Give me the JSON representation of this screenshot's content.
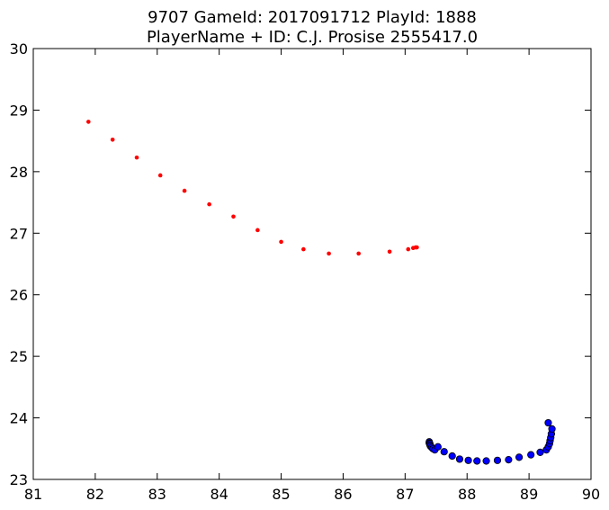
{
  "chart_data": {
    "type": "scatter",
    "title": "9707 GameId: 2017091712 PlayId: 1888",
    "subtitle": "PlayerName + ID: C.J. Prosise 2555417.0",
    "xlabel": "",
    "ylabel": "",
    "xlim": [
      81,
      90
    ],
    "ylim": [
      23,
      30
    ],
    "xticks": [
      "81",
      "82",
      "83",
      "84",
      "85",
      "86",
      "87",
      "88",
      "89",
      "90"
    ],
    "yticks": [
      "23",
      "24",
      "25",
      "26",
      "27",
      "28",
      "29",
      "30"
    ],
    "grid": false,
    "series": [
      {
        "color": "#ff0000",
        "marker": "small-dot",
        "points": [
          [
            81.89,
            28.81
          ],
          [
            82.28,
            28.52
          ],
          [
            82.67,
            28.23
          ],
          [
            83.05,
            27.94
          ],
          [
            83.44,
            27.69
          ],
          [
            83.84,
            27.47
          ],
          [
            84.23,
            27.27
          ],
          [
            84.62,
            27.05
          ],
          [
            85.0,
            26.86
          ],
          [
            85.36,
            26.74
          ],
          [
            85.77,
            26.67
          ],
          [
            86.25,
            26.67
          ],
          [
            86.75,
            26.7
          ],
          [
            87.05,
            26.74
          ],
          [
            87.13,
            26.76
          ],
          [
            87.17,
            26.77
          ],
          [
            87.19,
            26.77
          ]
        ]
      },
      {
        "color": "#0000ff",
        "marker": "circle",
        "points": [
          [
            87.39,
            23.61
          ],
          [
            87.39,
            23.59
          ],
          [
            87.4,
            23.58
          ],
          [
            87.4,
            23.56
          ],
          [
            87.41,
            23.54
          ],
          [
            87.43,
            23.52
          ],
          [
            87.45,
            23.5
          ],
          [
            87.48,
            23.48
          ],
          [
            87.53,
            23.53
          ],
          [
            87.63,
            23.45
          ],
          [
            87.76,
            23.38
          ],
          [
            87.88,
            23.33
          ],
          [
            88.02,
            23.31
          ],
          [
            88.16,
            23.3
          ],
          [
            88.31,
            23.3
          ],
          [
            88.49,
            23.31
          ],
          [
            88.67,
            23.32
          ],
          [
            88.84,
            23.36
          ],
          [
            89.03,
            23.4
          ],
          [
            89.18,
            23.44
          ],
          [
            89.28,
            23.48
          ],
          [
            89.31,
            23.53
          ],
          [
            89.33,
            23.58
          ],
          [
            89.34,
            23.63
          ],
          [
            89.35,
            23.68
          ],
          [
            89.36,
            23.74
          ],
          [
            89.37,
            23.82
          ],
          [
            89.31,
            23.92
          ]
        ]
      }
    ]
  }
}
